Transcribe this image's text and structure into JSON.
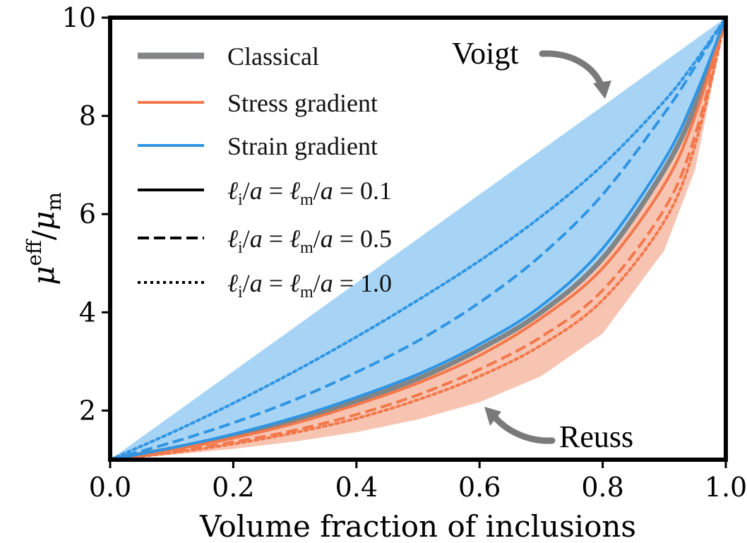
{
  "chart_data": {
    "type": "line",
    "xlabel": "Volume fraction of inclusions",
    "ylabel": "μeff/μm",
    "ylabel_parts": {
      "symbol": "μ",
      "sup": "eff",
      "slash": "/",
      "symbol2": "μ",
      "sub": "m"
    },
    "xlim": [
      0.0,
      1.0
    ],
    "ylim": [
      1,
      10
    ],
    "xticks": [
      "0.0",
      "0.2",
      "0.4",
      "0.6",
      "0.8",
      "1.0"
    ],
    "yticks": [
      "2",
      "4",
      "6",
      "8",
      "10"
    ],
    "grid": false,
    "legend_position": "upper-left",
    "legend": [
      {
        "label": "Classical",
        "color": "#808587",
        "style": "thick-solid"
      },
      {
        "label": "Stress gradient",
        "color": "#f2784b",
        "style": "solid"
      },
      {
        "label": "Strain gradient",
        "color": "#2f95e3",
        "style": "solid"
      },
      {
        "label": "ℓi/a = ℓm/a = 0.1",
        "color": "#000000",
        "style": "solid",
        "math": {
          "sub1": "i",
          "sub2": "m",
          "value": "0.1"
        }
      },
      {
        "label": "ℓi/a = ℓm/a = 0.5",
        "color": "#000000",
        "style": "dashed",
        "math": {
          "sub1": "i",
          "sub2": "m",
          "value": "0.5"
        }
      },
      {
        "label": "ℓi/a = ℓm/a = 1.0",
        "color": "#000000",
        "style": "dotted",
        "math": {
          "sub1": "i",
          "sub2": "m",
          "value": "1.0"
        }
      }
    ],
    "x": [
      0.0,
      0.1,
      0.2,
      0.3,
      0.4,
      0.5,
      0.6,
      0.7,
      0.8,
      0.9,
      0.95,
      1.0
    ],
    "bounds": {
      "voigt": [
        1.0,
        1.9,
        2.8,
        3.7,
        4.6,
        5.5,
        6.4,
        7.3,
        8.2,
        9.1,
        9.55,
        10.0
      ],
      "reuss": [
        1.0,
        1.1,
        1.22,
        1.37,
        1.56,
        1.82,
        2.17,
        2.7,
        3.57,
        5.26,
        6.9,
        10.0
      ]
    },
    "series": [
      {
        "name": "Classical",
        "color": "#808587",
        "dash": "solid",
        "width": 7,
        "values": [
          1.0,
          1.22,
          1.48,
          1.8,
          2.2,
          2.65,
          3.25,
          4.0,
          5.1,
          6.9,
          8.2,
          10.0
        ]
      },
      {
        "name": "Stress gradient",
        "group": "stress",
        "ell": 0.1,
        "color": "#f2784b",
        "dash": "solid",
        "width": 4,
        "values": [
          1.0,
          1.2,
          1.44,
          1.74,
          2.12,
          2.56,
          3.12,
          3.88,
          4.9,
          6.6,
          8.0,
          10.0
        ]
      },
      {
        "group": "stress",
        "ell": 0.5,
        "color": "#f2784b",
        "dash": "dashed",
        "width": 4,
        "values": [
          1.0,
          1.16,
          1.36,
          1.6,
          1.92,
          2.32,
          2.84,
          3.5,
          4.45,
          6.1,
          7.6,
          10.0
        ]
      },
      {
        "group": "stress",
        "ell": 1.0,
        "color": "#f2784b",
        "dash": "dotted",
        "width": 4,
        "values": [
          1.0,
          1.14,
          1.32,
          1.55,
          1.84,
          2.22,
          2.7,
          3.33,
          4.25,
          5.85,
          7.4,
          10.0
        ]
      },
      {
        "name": "Strain gradient",
        "group": "strain",
        "ell": 0.1,
        "color": "#2f95e3",
        "dash": "solid",
        "width": 4,
        "values": [
          1.0,
          1.24,
          1.52,
          1.86,
          2.27,
          2.74,
          3.35,
          4.13,
          5.3,
          7.1,
          8.4,
          10.0
        ]
      },
      {
        "group": "strain",
        "ell": 0.5,
        "color": "#2f95e3",
        "dash": "dashed",
        "width": 4,
        "values": [
          1.0,
          1.35,
          1.75,
          2.22,
          2.78,
          3.42,
          4.2,
          5.16,
          6.4,
          8.05,
          9.0,
          10.0
        ]
      },
      {
        "group": "strain",
        "ell": 1.0,
        "color": "#2f95e3",
        "dash": "dotted",
        "width": 4,
        "values": [
          1.0,
          1.55,
          2.15,
          2.8,
          3.5,
          4.25,
          5.05,
          5.95,
          7.0,
          8.3,
          9.1,
          10.0
        ]
      }
    ],
    "fills": [
      {
        "between": [
          "voigt",
          "classical"
        ],
        "color": "#a7d4f5"
      },
      {
        "between": [
          "classical",
          "reuss"
        ],
        "color": "#f8c4b2"
      }
    ],
    "annotations": [
      {
        "text": "Voigt",
        "target_x": 0.805,
        "target_y": 8.2
      },
      {
        "text": "Reuss",
        "target_x": 0.61,
        "target_y": 2.1
      }
    ]
  }
}
